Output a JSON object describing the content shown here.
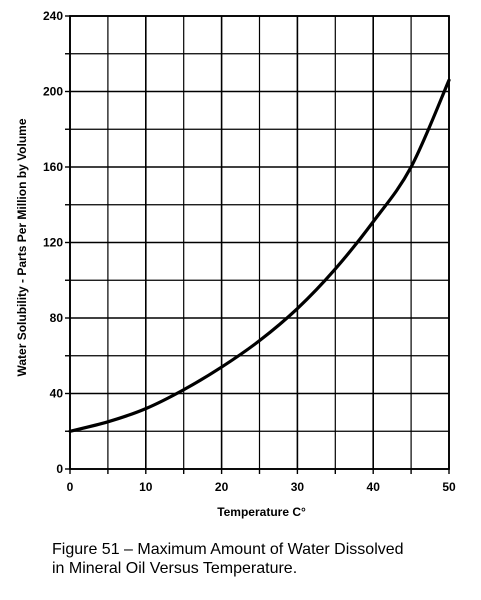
{
  "chart_data": {
    "type": "line",
    "title": "",
    "xlabel": "Temperature C°",
    "ylabel": "Water Solubility - Parts Per Million by Volume",
    "xlim": [
      0,
      50
    ],
    "ylim": [
      0,
      240
    ],
    "grid": true,
    "x_ticks": [
      "0",
      "10",
      "20",
      "30",
      "40",
      "50"
    ],
    "y_ticks": [
      "0",
      "40",
      "80",
      "120",
      "160",
      "200",
      "240"
    ],
    "series": [
      {
        "color": "#000000",
        "x": [
          0,
          5,
          10,
          15,
          20,
          25,
          30,
          35,
          40,
          45,
          50
        ],
        "y": [
          20,
          25,
          32,
          42,
          54,
          68,
          85,
          106,
          131,
          160,
          206
        ]
      }
    ]
  },
  "caption": {
    "line1": "Figure 51 – Maximum Amount of Water Dissolved",
    "line2": "in Mineral Oil Versus Temperature."
  }
}
